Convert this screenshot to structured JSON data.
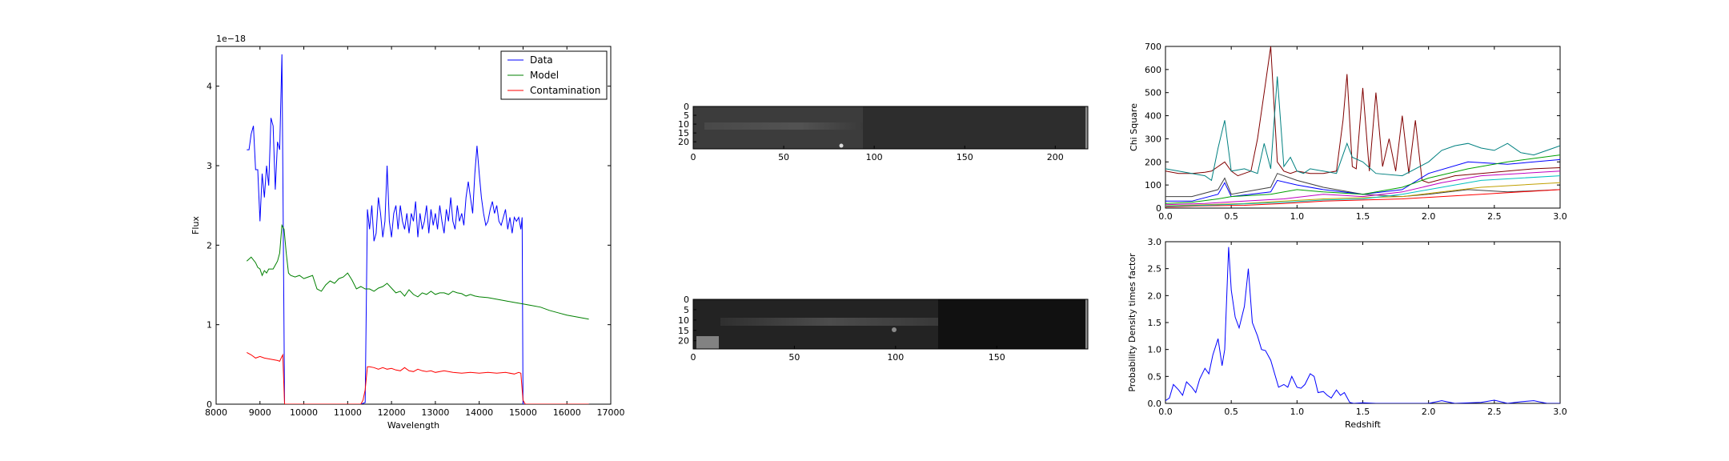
{
  "chart_data": [
    {
      "id": "spectrum",
      "type": "line",
      "xlabel": "Wavelength",
      "ylabel": "Flux",
      "offset_text": "1e−18",
      "xlim": [
        8000,
        17000
      ],
      "ylim": [
        0,
        4.5
      ],
      "xticks": [
        "8000",
        "9000",
        "10000",
        "11000",
        "12000",
        "13000",
        "14000",
        "15000",
        "16000",
        "17000"
      ],
      "yticks": [
        "0",
        "1",
        "2",
        "3",
        "4"
      ],
      "legend": "top-right",
      "series": [
        {
          "name": "Data",
          "color": "#0000ff",
          "x": [
            8700,
            8750,
            8800,
            8850,
            8900,
            8950,
            9000,
            9050,
            9100,
            9150,
            9200,
            9250,
            9300,
            9350,
            9400,
            9450,
            9500,
            9520,
            9560,
            9580,
            9600,
            10000,
            10500,
            11000,
            11300,
            11400,
            11450,
            11500,
            11550,
            11600,
            11650,
            11700,
            11750,
            11800,
            11850,
            11900,
            11950,
            12000,
            12050,
            12100,
            12150,
            12200,
            12250,
            12300,
            12350,
            12400,
            12450,
            12500,
            12550,
            12600,
            12650,
            12700,
            12750,
            12800,
            12850,
            12900,
            12950,
            13000,
            13050,
            13100,
            13150,
            13200,
            13250,
            13300,
            13350,
            13400,
            13450,
            13500,
            13550,
            13600,
            13650,
            13700,
            13750,
            13800,
            13850,
            13900,
            13950,
            14000,
            14050,
            14100,
            14150,
            14200,
            14250,
            14300,
            14350,
            14400,
            14450,
            14500,
            14550,
            14600,
            14650,
            14700,
            14750,
            14800,
            14850,
            14900,
            14950,
            14980,
            15000,
            15050,
            15500,
            16000,
            16500
          ],
          "y": [
            3.2,
            3.2,
            3.4,
            3.5,
            2.95,
            2.95,
            2.3,
            2.9,
            2.6,
            3.0,
            2.75,
            3.6,
            3.5,
            2.7,
            3.3,
            3.2,
            4.4,
            3.0,
            0.0,
            0.0,
            0.0,
            0.0,
            0.0,
            0.0,
            0.0,
            0.02,
            2.45,
            2.2,
            2.5,
            2.05,
            2.15,
            2.6,
            2.4,
            2.1,
            2.3,
            3.0,
            2.3,
            2.1,
            2.4,
            2.5,
            2.2,
            2.5,
            2.3,
            2.2,
            2.4,
            2.15,
            2.4,
            2.3,
            2.55,
            2.1,
            2.4,
            2.2,
            2.3,
            2.5,
            2.15,
            2.45,
            2.25,
            2.4,
            2.2,
            2.5,
            2.3,
            2.15,
            2.45,
            2.3,
            2.6,
            2.3,
            2.2,
            2.5,
            2.3,
            2.4,
            2.25,
            2.6,
            2.8,
            2.6,
            2.4,
            2.9,
            3.25,
            2.9,
            2.6,
            2.4,
            2.25,
            2.3,
            2.45,
            2.55,
            2.4,
            2.5,
            2.3,
            2.25,
            2.35,
            2.45,
            2.2,
            2.35,
            2.15,
            2.35,
            2.3,
            2.35,
            2.2,
            2.35,
            0.0,
            0.0,
            0.0,
            0.0,
            0.0
          ]
        },
        {
          "name": "Model",
          "color": "#008000",
          "x": [
            8700,
            8800,
            8900,
            8950,
            9000,
            9050,
            9100,
            9150,
            9200,
            9300,
            9350,
            9400,
            9450,
            9500,
            9550,
            9600,
            9650,
            9700,
            9800,
            9900,
            10000,
            10100,
            10200,
            10300,
            10400,
            10500,
            10600,
            10700,
            10800,
            10900,
            11000,
            11100,
            11200,
            11300,
            11400,
            11500,
            11600,
            11700,
            11800,
            11900,
            12000,
            12100,
            12200,
            12300,
            12400,
            12500,
            12600,
            12700,
            12800,
            12900,
            13000,
            13100,
            13200,
            13300,
            13400,
            13500,
            13600,
            13700,
            13800,
            13900,
            14000,
            14200,
            14400,
            14600,
            14800,
            15000,
            15200,
            15400,
            15600,
            15800,
            16000,
            16200,
            16400,
            16500
          ],
          "y": [
            1.8,
            1.85,
            1.78,
            1.72,
            1.7,
            1.62,
            1.68,
            1.65,
            1.7,
            1.7,
            1.75,
            1.8,
            1.9,
            2.25,
            2.2,
            1.9,
            1.65,
            1.62,
            1.6,
            1.62,
            1.58,
            1.6,
            1.62,
            1.45,
            1.42,
            1.5,
            1.55,
            1.52,
            1.58,
            1.6,
            1.65,
            1.56,
            1.45,
            1.48,
            1.45,
            1.45,
            1.42,
            1.46,
            1.48,
            1.52,
            1.46,
            1.4,
            1.42,
            1.36,
            1.44,
            1.38,
            1.35,
            1.4,
            1.38,
            1.42,
            1.38,
            1.4,
            1.4,
            1.38,
            1.42,
            1.4,
            1.39,
            1.36,
            1.38,
            1.36,
            1.35,
            1.34,
            1.32,
            1.3,
            1.28,
            1.26,
            1.24,
            1.22,
            1.18,
            1.15,
            1.12,
            1.1,
            1.08,
            1.07
          ]
        },
        {
          "name": "Contamination",
          "color": "#ff0000",
          "x": [
            8700,
            8800,
            8900,
            9000,
            9100,
            9200,
            9300,
            9400,
            9450,
            9500,
            9520,
            9560,
            9580,
            9600,
            10000,
            10500,
            11000,
            11300,
            11350,
            11400,
            11450,
            11500,
            11600,
            11700,
            11800,
            11900,
            12000,
            12100,
            12200,
            12300,
            12400,
            12500,
            12600,
            12700,
            12800,
            12900,
            13000,
            13200,
            13400,
            13600,
            13800,
            14000,
            14200,
            14400,
            14600,
            14800,
            14900,
            14950,
            15000,
            15050,
            15100,
            15500,
            16000,
            16500
          ],
          "y": [
            0.65,
            0.62,
            0.58,
            0.6,
            0.58,
            0.57,
            0.56,
            0.55,
            0.54,
            0.6,
            0.62,
            0.0,
            0.0,
            0.0,
            0.0,
            0.0,
            0.0,
            0.0,
            0.05,
            0.18,
            0.47,
            0.47,
            0.46,
            0.44,
            0.46,
            0.44,
            0.45,
            0.43,
            0.42,
            0.46,
            0.42,
            0.41,
            0.44,
            0.42,
            0.41,
            0.42,
            0.4,
            0.42,
            0.4,
            0.39,
            0.4,
            0.39,
            0.4,
            0.39,
            0.4,
            0.38,
            0.4,
            0.39,
            0.05,
            0.0,
            0.0,
            0.0,
            0.0,
            0.0
          ]
        }
      ]
    },
    {
      "id": "thumb-top",
      "type": "heatmap",
      "xlim": [
        0,
        218
      ],
      "ylim": [
        0,
        24
      ],
      "xticks": [
        "0",
        "50",
        "100",
        "150",
        "200"
      ],
      "yticks": [
        "0",
        "5",
        "10",
        "15",
        "20"
      ]
    },
    {
      "id": "thumb-bottom",
      "type": "heatmap",
      "xlim": [
        0,
        195
      ],
      "ylim": [
        0,
        24
      ],
      "xticks": [
        "0",
        "50",
        "100",
        "150"
      ],
      "yticks": [
        "0",
        "5",
        "10",
        "15",
        "20"
      ]
    },
    {
      "id": "chisquare",
      "type": "line",
      "xlabel": "",
      "ylabel": "Chi Square",
      "xlim": [
        0,
        3
      ],
      "ylim": [
        0,
        700
      ],
      "xticks": [
        "0.0",
        "0.5",
        "1.0",
        "1.5",
        "2.0",
        "2.5",
        "3.0"
      ],
      "yticks": [
        "0",
        "100",
        "200",
        "300",
        "400",
        "500",
        "600",
        "700"
      ],
      "series": [
        {
          "color": "#800000",
          "x": [
            0,
            0.1,
            0.2,
            0.3,
            0.35,
            0.4,
            0.45,
            0.5,
            0.55,
            0.6,
            0.65,
            0.7,
            0.75,
            0.8,
            0.85,
            0.9,
            0.95,
            1.0,
            1.05,
            1.1,
            1.2,
            1.3,
            1.35,
            1.38,
            1.42,
            1.45,
            1.5,
            1.55,
            1.6,
            1.65,
            1.7,
            1.75,
            1.8,
            1.85,
            1.9,
            1.95,
            2.0,
            2.2,
            2.4,
            2.6,
            2.8,
            3.0
          ],
          "y": [
            160,
            150,
            150,
            155,
            160,
            180,
            200,
            160,
            140,
            150,
            160,
            300,
            500,
            700,
            200,
            160,
            150,
            160,
            155,
            150,
            150,
            160,
            380,
            580,
            180,
            170,
            520,
            160,
            500,
            180,
            300,
            160,
            400,
            150,
            380,
            120,
            110,
            140,
            150,
            160,
            170,
            175
          ]
        },
        {
          "color": "#008080",
          "x": [
            0,
            0.1,
            0.2,
            0.3,
            0.35,
            0.4,
            0.45,
            0.5,
            0.6,
            0.7,
            0.75,
            0.8,
            0.85,
            0.9,
            0.95,
            1.0,
            1.05,
            1.1,
            1.2,
            1.3,
            1.38,
            1.42,
            1.5,
            1.6,
            1.8,
            2.0,
            2.1,
            2.2,
            2.3,
            2.4,
            2.5,
            2.6,
            2.7,
            2.8,
            2.9,
            3.0
          ],
          "y": [
            170,
            160,
            150,
            140,
            120,
            260,
            380,
            160,
            170,
            150,
            280,
            170,
            570,
            180,
            220,
            160,
            150,
            170,
            160,
            150,
            280,
            220,
            200,
            150,
            140,
            200,
            250,
            270,
            280,
            260,
            250,
            280,
            240,
            230,
            250,
            270
          ]
        },
        {
          "color": "#404040",
          "x": [
            0,
            0.2,
            0.4,
            0.45,
            0.5,
            0.8,
            0.85,
            1.0,
            1.2,
            1.5,
            1.8,
            2.0,
            2.3,
            2.6,
            3.0
          ],
          "y": [
            50,
            50,
            80,
            130,
            60,
            90,
            150,
            120,
            90,
            60,
            50,
            60,
            80,
            70,
            80
          ]
        },
        {
          "color": "#0000ff",
          "x": [
            0,
            0.2,
            0.4,
            0.45,
            0.5,
            0.8,
            0.85,
            1.0,
            1.2,
            1.5,
            1.8,
            2.0,
            2.3,
            2.6,
            3.0
          ],
          "y": [
            30,
            30,
            60,
            110,
            50,
            70,
            120,
            100,
            80,
            60,
            80,
            150,
            200,
            190,
            210
          ]
        },
        {
          "color": "#00a000",
          "x": [
            0,
            0.2,
            0.4,
            0.5,
            0.8,
            1.0,
            1.2,
            1.5,
            1.8,
            2.0,
            2.3,
            2.6,
            3.0
          ],
          "y": [
            20,
            25,
            40,
            50,
            60,
            80,
            70,
            60,
            90,
            130,
            170,
            200,
            230
          ]
        },
        {
          "color": "#c000c0",
          "x": [
            0,
            0.3,
            0.6,
            0.9,
            1.2,
            1.5,
            1.8,
            2.1,
            2.4,
            2.7,
            3.0
          ],
          "y": [
            15,
            20,
            30,
            40,
            60,
            50,
            70,
            110,
            140,
            150,
            160
          ]
        },
        {
          "color": "#c0a000",
          "x": [
            0,
            0.3,
            0.6,
            0.9,
            1.2,
            1.5,
            1.8,
            2.1,
            2.4,
            2.7,
            3.0
          ],
          "y": [
            10,
            15,
            20,
            30,
            40,
            45,
            50,
            70,
            90,
            100,
            110
          ]
        },
        {
          "color": "#ff0000",
          "x": [
            0,
            0.3,
            0.6,
            0.9,
            1.2,
            1.5,
            1.8,
            2.1,
            2.4,
            2.7,
            3.0
          ],
          "y": [
            5,
            10,
            12,
            20,
            30,
            35,
            40,
            50,
            60,
            70,
            80
          ]
        },
        {
          "color": "#00c0c0",
          "x": [
            0,
            0.3,
            0.6,
            0.9,
            1.2,
            1.5,
            1.8,
            2.1,
            2.4,
            2.7,
            3.0
          ],
          "y": [
            8,
            12,
            18,
            25,
            35,
            40,
            60,
            90,
            120,
            130,
            140
          ]
        }
      ]
    },
    {
      "id": "pdf",
      "type": "line",
      "xlabel": "Redshift",
      "ylabel": "Probability Density times factor",
      "xlim": [
        0,
        3
      ],
      "ylim": [
        0,
        3
      ],
      "xticks": [
        "0.0",
        "0.5",
        "1.0",
        "1.5",
        "2.0",
        "2.5",
        "3.0"
      ],
      "yticks": [
        "0.0",
        "0.5",
        "1.0",
        "1.5",
        "2.0",
        "2.5",
        "3.0"
      ],
      "series": [
        {
          "color": "#0000ff",
          "x": [
            0,
            0.03,
            0.06,
            0.1,
            0.13,
            0.16,
            0.2,
            0.23,
            0.26,
            0.3,
            0.33,
            0.36,
            0.4,
            0.43,
            0.45,
            0.48,
            0.5,
            0.53,
            0.56,
            0.6,
            0.63,
            0.66,
            0.7,
            0.73,
            0.76,
            0.8,
            0.83,
            0.86,
            0.9,
            0.93,
            0.96,
            1.0,
            1.03,
            1.06,
            1.1,
            1.13,
            1.16,
            1.2,
            1.23,
            1.26,
            1.3,
            1.33,
            1.36,
            1.4,
            1.43,
            1.5,
            1.6,
            1.8,
            2.0,
            2.1,
            2.2,
            2.4,
            2.5,
            2.6,
            2.7,
            2.8,
            2.9,
            3.0
          ],
          "y": [
            0.05,
            0.1,
            0.35,
            0.25,
            0.15,
            0.4,
            0.3,
            0.2,
            0.45,
            0.65,
            0.55,
            0.9,
            1.2,
            0.7,
            1.0,
            2.9,
            2.1,
            1.6,
            1.4,
            1.8,
            2.5,
            1.5,
            1.25,
            1.0,
            0.98,
            0.8,
            0.55,
            0.3,
            0.35,
            0.3,
            0.5,
            0.3,
            0.28,
            0.35,
            0.55,
            0.5,
            0.2,
            0.22,
            0.15,
            0.1,
            0.25,
            0.15,
            0.2,
            0.02,
            0.0,
            0.01,
            0.0,
            0.0,
            0.0,
            0.05,
            0.0,
            0.02,
            0.06,
            0.0,
            0.03,
            0.05,
            0.0,
            0.0
          ]
        }
      ]
    }
  ]
}
